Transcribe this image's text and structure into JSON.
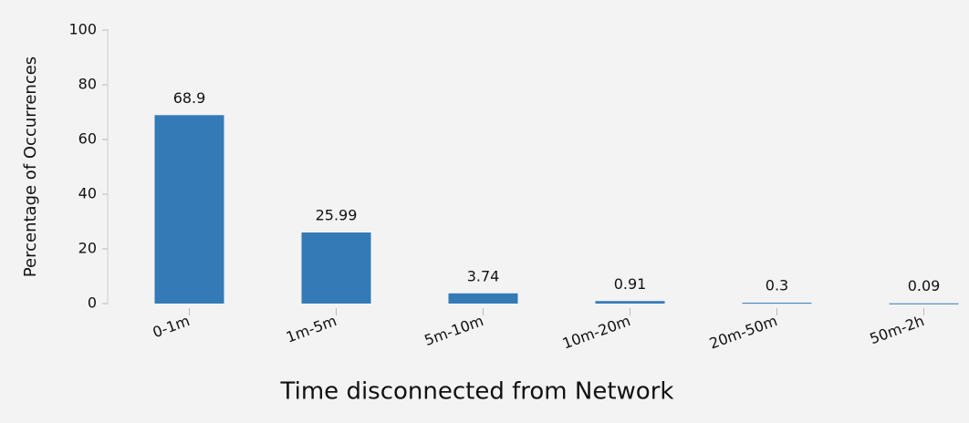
{
  "chart_data": {
    "type": "bar",
    "x_label": "Time disconnected from Network",
    "y_label": "Percentage of Occurrences",
    "categories": [
      "0-1m",
      "1m-5m",
      "5m-10m",
      "10m-20m",
      "20m-50m",
      "50m-2h"
    ],
    "values": [
      68.9,
      25.99,
      3.74,
      0.91,
      0.3,
      0.09
    ],
    "color": "#337ab7",
    "ylim": [
      0,
      100
    ],
    "yticks": [
      0,
      20,
      40,
      60,
      80,
      100
    ],
    "grid": false
  }
}
